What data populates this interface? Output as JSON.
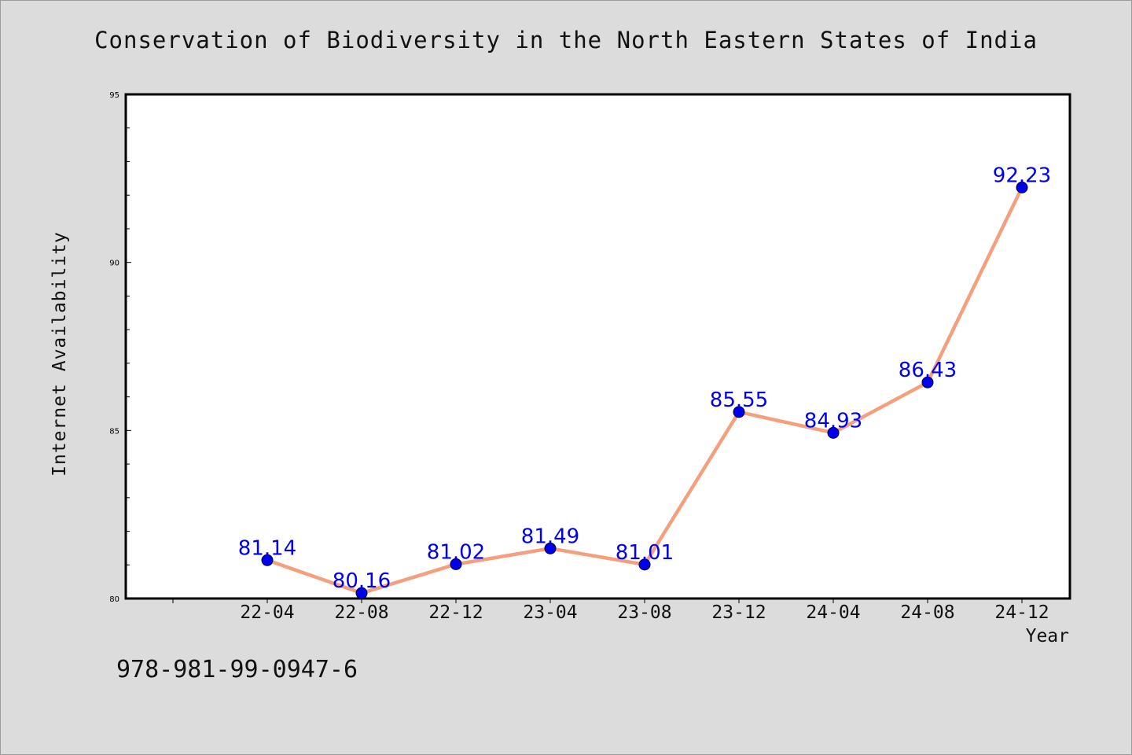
{
  "chart_data": {
    "type": "line",
    "title": "Conservation of Biodiversity in the North Eastern States of India",
    "xlabel": "Year",
    "ylabel": "Internet Availability",
    "categories": [
      "22-04",
      "22-08",
      "22-12",
      "23-04",
      "23-08",
      "23-12",
      "24-04",
      "24-08",
      "24-12"
    ],
    "values": [
      81.14,
      80.16,
      81.02,
      81.49,
      81.01,
      85.55,
      84.93,
      86.43,
      92.23
    ],
    "data_labels": [
      "81.14",
      "80.16",
      "81.02",
      "81.49",
      "81.01",
      "85.55",
      "84.93",
      "86.43",
      "92.23"
    ],
    "ylim": [
      80,
      95
    ],
    "yticks": [
      "80",
      "85",
      "90",
      "95"
    ],
    "grid": false,
    "line_color": "#f4a07e",
    "marker_color": "#0000ee",
    "label_color": "#0000ee"
  },
  "footnote": "978-981-99-0947-6"
}
